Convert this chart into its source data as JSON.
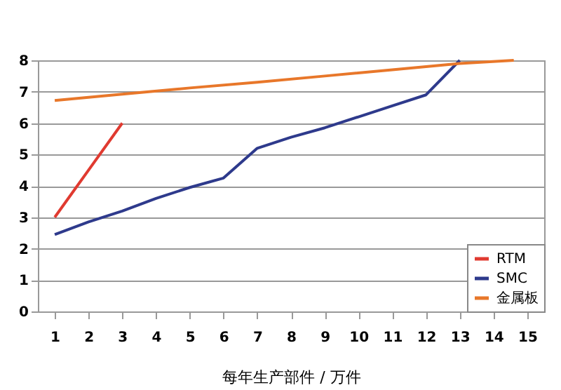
{
  "chart_data": {
    "type": "line",
    "xlabel": "每年生产部件 / 万件",
    "xlim": [
      0.5,
      15.5
    ],
    "xticks": [
      1,
      2,
      3,
      4,
      5,
      6,
      7,
      8,
      9,
      10,
      11,
      12,
      13,
      14,
      15
    ],
    "ylim": [
      0,
      8
    ],
    "yticks": [
      0,
      1,
      2,
      3,
      4,
      5,
      6,
      7,
      8
    ],
    "grid": "y",
    "legend": "bottom right",
    "marker": "none",
    "line_style": "solid",
    "series": [
      {
        "name": "RTM",
        "color": "#e03a30",
        "x": [
          1,
          2,
          3
        ],
        "values": [
          3.0,
          4.5,
          6.0
        ]
      },
      {
        "name": "SMC",
        "color": "#2e3a8c",
        "x": [
          1,
          2,
          3,
          4,
          5,
          6,
          7,
          8,
          9,
          10,
          11,
          12,
          13
        ],
        "values": [
          2.45,
          2.85,
          3.2,
          3.6,
          3.95,
          4.25,
          5.2,
          5.55,
          5.85,
          6.2,
          6.55,
          6.9,
          8.0
        ]
      },
      {
        "name": "金属板",
        "color": "#e8772a",
        "x": [
          1,
          3,
          5,
          7,
          9,
          11,
          13,
          14.6
        ],
        "values": [
          6.72,
          6.92,
          7.12,
          7.3,
          7.5,
          7.7,
          7.9,
          8.0
        ]
      }
    ]
  }
}
